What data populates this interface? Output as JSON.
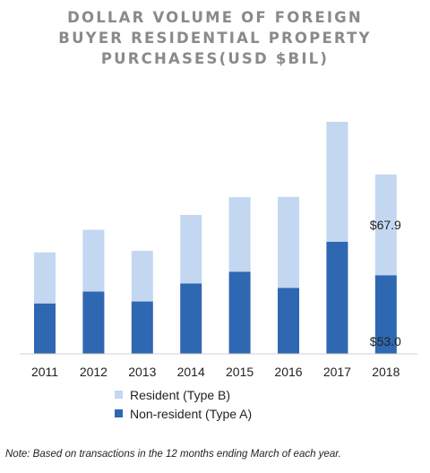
{
  "chart_data": {
    "type": "bar",
    "stacked": true,
    "title": [
      "DOLLAR VOLUME OF FOREIGN",
      "BUYER RESIDENTIAL PROPERTY",
      "PURCHASES(USD $BIL)"
    ],
    "categories": [
      "2011",
      "2012",
      "2013",
      "2014",
      "2015",
      "2016",
      "2017",
      "2018"
    ],
    "series": [
      {
        "name": "Non-resident (Type A)",
        "color": "#2e67b2",
        "values": [
          34.0,
          42.0,
          35.3,
          47.4,
          55.4,
          44.5,
          75.6,
          53.0
        ]
      },
      {
        "name": "Resident (Type B)",
        "color": "#c3d7f1",
        "values": [
          34.4,
          41.6,
          34.1,
          46.2,
          50.2,
          61.3,
          80.8,
          67.9
        ]
      }
    ],
    "data_labels": [
      {
        "category": "2018",
        "series": "Resident (Type B)",
        "text": "$67.9"
      },
      {
        "category": "2018",
        "series": "Non-resident (Type A)",
        "text": "$53.0"
      }
    ],
    "ylim": [
      0,
      160
    ],
    "grid": false,
    "legend_position": "bottom"
  },
  "legend": [
    {
      "label": "Resident (Type B)",
      "color": "#c3d7f1"
    },
    {
      "label": "Non-resident (Type A)",
      "color": "#2e67b2"
    }
  ],
  "note": "Note: Based on transactions in the 12 months ending March of each year."
}
